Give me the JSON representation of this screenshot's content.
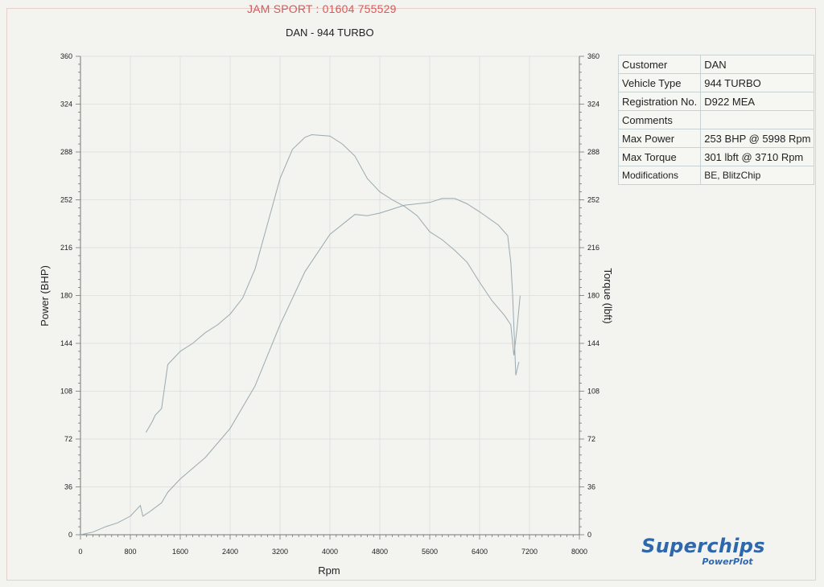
{
  "header": {
    "text": "JAM SPORT : 01604 755529"
  },
  "colors": {
    "header": "#d45a5a",
    "curve": "#9aaab0",
    "grid": "#dcdcdc",
    "logo": "#2f67ad"
  },
  "info_table": [
    {
      "key": "Customer",
      "value": "DAN"
    },
    {
      "key": "Vehicle Type",
      "value": "944 TURBO"
    },
    {
      "key": "Registration No.",
      "value": "D922 MEA"
    },
    {
      "key": "Comments",
      "value": ""
    },
    {
      "key": "Max Power",
      "value": "253 BHP @ 5998 Rpm"
    },
    {
      "key": "Max Torque",
      "value": "301 lbft @ 3710 Rpm"
    },
    {
      "key": "Modifications",
      "value": "BE, BlitzChip"
    }
  ],
  "logo": {
    "main": "Superchips",
    "sub": "PowerPlot"
  },
  "chart_data": {
    "type": "line",
    "title": "DAN - 944 TURBO",
    "xlabel": "Rpm",
    "ylabel": "Power (BHP)",
    "y2label": "Torque (lbft)",
    "xlim": [
      0,
      8000
    ],
    "ylim": [
      0,
      360
    ],
    "y2lim": [
      0,
      360
    ],
    "xticks": [
      0,
      800,
      1600,
      2400,
      3200,
      4000,
      4800,
      5600,
      6400,
      7200,
      8000
    ],
    "yticks": [
      0,
      36,
      72,
      108,
      144,
      180,
      216,
      252,
      288,
      324,
      360
    ],
    "y2ticks": [
      0,
      36,
      72,
      108,
      144,
      180,
      216,
      252,
      288,
      324,
      360
    ],
    "grid": true,
    "series": [
      {
        "axis": "left",
        "points": [
          [
            0,
            0
          ],
          [
            200,
            2
          ],
          [
            400,
            6
          ],
          [
            600,
            9
          ],
          [
            800,
            14
          ],
          [
            960,
            22
          ],
          [
            1000,
            14
          ],
          [
            1100,
            17
          ],
          [
            1300,
            24
          ],
          [
            1400,
            32
          ],
          [
            1600,
            42
          ],
          [
            2000,
            58
          ],
          [
            2400,
            80
          ],
          [
            2800,
            112
          ],
          [
            3200,
            158
          ],
          [
            3600,
            198
          ],
          [
            4000,
            226
          ],
          [
            4400,
            241
          ],
          [
            4600,
            240
          ],
          [
            4800,
            242
          ],
          [
            5200,
            248
          ],
          [
            5600,
            250
          ],
          [
            5800,
            253
          ],
          [
            6000,
            253
          ],
          [
            6200,
            249
          ],
          [
            6400,
            243
          ],
          [
            6700,
            233
          ],
          [
            6850,
            225
          ],
          [
            6900,
            205
          ],
          [
            6930,
            180
          ],
          [
            6980,
            120
          ],
          [
            7030,
            130
          ]
        ]
      },
      {
        "axis": "right",
        "points": [
          [
            1050,
            77
          ],
          [
            1150,
            85
          ],
          [
            1200,
            90
          ],
          [
            1300,
            95
          ],
          [
            1400,
            128
          ],
          [
            1600,
            138
          ],
          [
            1800,
            144
          ],
          [
            2000,
            152
          ],
          [
            2200,
            158
          ],
          [
            2400,
            166
          ],
          [
            2600,
            178
          ],
          [
            2800,
            200
          ],
          [
            3000,
            234
          ],
          [
            3200,
            268
          ],
          [
            3400,
            290
          ],
          [
            3600,
            299
          ],
          [
            3710,
            301
          ],
          [
            4000,
            300
          ],
          [
            4200,
            294
          ],
          [
            4400,
            285
          ],
          [
            4600,
            268
          ],
          [
            4800,
            258
          ],
          [
            5000,
            252
          ],
          [
            5200,
            247
          ],
          [
            5400,
            240
          ],
          [
            5600,
            228
          ],
          [
            5800,
            222
          ],
          [
            6000,
            214
          ],
          [
            6200,
            205
          ],
          [
            6400,
            190
          ],
          [
            6600,
            176
          ],
          [
            6800,
            165
          ],
          [
            6900,
            158
          ],
          [
            6950,
            135
          ],
          [
            7000,
            155
          ],
          [
            7050,
            180
          ]
        ]
      }
    ]
  }
}
